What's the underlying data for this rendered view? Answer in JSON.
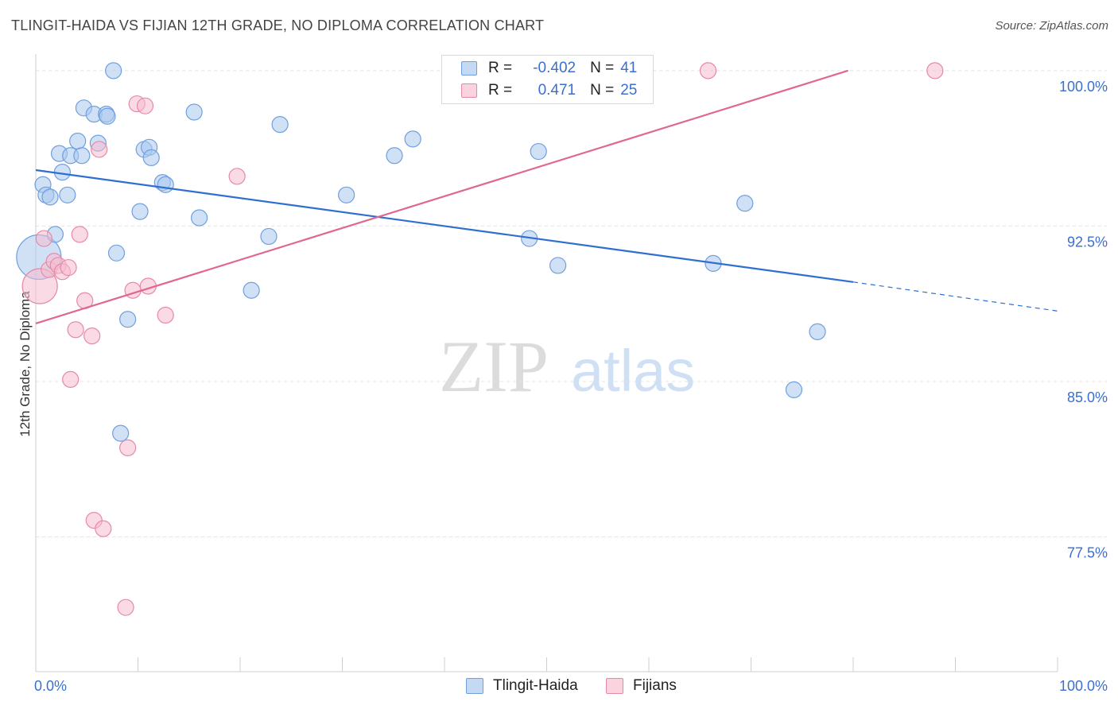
{
  "chart_data": {
    "type": "scatter",
    "title": "TLINGIT-HAIDA VS FIJIAN 12TH GRADE, NO DIPLOMA CORRELATION CHART",
    "source": "Source: ZipAtlas.com",
    "xlabel": "",
    "ylabel": "12th Grade, No Diploma",
    "xlim": [
      0,
      100
    ],
    "ylim": [
      71,
      100.8
    ],
    "x_tick_labels": [
      "0.0%",
      "100.0%"
    ],
    "y_ticks": [
      77.5,
      85.0,
      92.5,
      100.0
    ],
    "y_tick_labels": [
      "77.5%",
      "85.0%",
      "92.5%",
      "100.0%"
    ],
    "watermark": {
      "part1": "ZIP",
      "part2": "atlas"
    },
    "legend": {
      "r_label": "R =",
      "n_label": "N =",
      "rows": [
        {
          "name": "Tlingit-Haida",
          "r": "-0.402",
          "n": "41"
        },
        {
          "name": "Fijians",
          "r": "0.471",
          "n": "25"
        }
      ]
    },
    "series": [
      {
        "name": "Tlingit-Haida",
        "color": "#6f9fde",
        "fill": "#a9c8ee",
        "trend": {
          "x0": 0,
          "y0": 95.2,
          "x1": 80,
          "y1": 89.8,
          "dash_to_x": 100,
          "dash_to_y": 88.4
        },
        "points": [
          [
            0.3,
            91.0,
            28
          ],
          [
            0.7,
            94.5,
            10
          ],
          [
            1.0,
            94.0,
            10
          ],
          [
            1.4,
            93.9,
            10
          ],
          [
            1.9,
            92.1,
            10
          ],
          [
            2.3,
            96.0,
            10
          ],
          [
            2.6,
            95.1,
            10
          ],
          [
            3.1,
            94.0,
            10
          ],
          [
            3.4,
            95.9,
            10
          ],
          [
            4.1,
            96.6,
            10
          ],
          [
            4.5,
            95.9,
            10
          ],
          [
            4.7,
            98.2,
            10
          ],
          [
            5.7,
            97.9,
            10
          ],
          [
            6.1,
            96.5,
            10
          ],
          [
            6.9,
            97.9,
            10
          ],
          [
            7.0,
            97.8,
            10
          ],
          [
            7.6,
            100.0,
            10
          ],
          [
            7.9,
            91.2,
            10
          ],
          [
            9.0,
            88.0,
            10
          ],
          [
            10.2,
            93.2,
            10
          ],
          [
            10.6,
            96.2,
            10
          ],
          [
            11.1,
            96.3,
            10
          ],
          [
            11.3,
            95.8,
            10
          ],
          [
            12.4,
            94.6,
            10
          ],
          [
            12.7,
            94.5,
            10
          ],
          [
            15.5,
            98.0,
            10
          ],
          [
            16.0,
            92.9,
            10
          ],
          [
            21.1,
            89.4,
            10
          ],
          [
            22.8,
            92.0,
            10
          ],
          [
            23.9,
            97.4,
            10
          ],
          [
            30.4,
            94.0,
            10
          ],
          [
            35.1,
            95.9,
            10
          ],
          [
            36.9,
            96.7,
            10
          ],
          [
            8.3,
            82.5,
            10
          ],
          [
            48.3,
            91.9,
            10
          ],
          [
            49.2,
            96.1,
            10
          ],
          [
            51.1,
            90.6,
            10
          ],
          [
            66.3,
            90.7,
            10
          ],
          [
            69.4,
            93.6,
            10
          ],
          [
            76.5,
            87.4,
            10
          ],
          [
            74.2,
            84.6,
            10
          ]
        ]
      },
      {
        "name": "Fijians",
        "color": "#e58aa6",
        "fill": "#f6bccd",
        "trend": {
          "x0": 0,
          "y0": 87.8,
          "x1": 79.5,
          "y1": 100.0
        },
        "points": [
          [
            0.4,
            89.6,
            22
          ],
          [
            0.8,
            91.9,
            10
          ],
          [
            1.3,
            90.4,
            10
          ],
          [
            1.8,
            90.8,
            10
          ],
          [
            2.2,
            90.6,
            10
          ],
          [
            2.6,
            90.3,
            10
          ],
          [
            3.2,
            90.5,
            10
          ],
          [
            3.4,
            85.1,
            10
          ],
          [
            3.9,
            87.5,
            10
          ],
          [
            4.3,
            92.1,
            10
          ],
          [
            4.8,
            88.9,
            10
          ],
          [
            5.5,
            87.2,
            10
          ],
          [
            5.7,
            78.3,
            10
          ],
          [
            6.6,
            77.9,
            10
          ],
          [
            6.2,
            96.2,
            10
          ],
          [
            9.0,
            81.8,
            10
          ],
          [
            8.8,
            74.1,
            10
          ],
          [
            9.5,
            89.4,
            10
          ],
          [
            9.9,
            98.4,
            10
          ],
          [
            10.7,
            98.3,
            10
          ],
          [
            11.0,
            89.6,
            10
          ],
          [
            12.7,
            88.2,
            10
          ],
          [
            19.7,
            94.9,
            10
          ],
          [
            65.8,
            100.0,
            10
          ],
          [
            88.0,
            100.0,
            10
          ]
        ]
      }
    ]
  }
}
